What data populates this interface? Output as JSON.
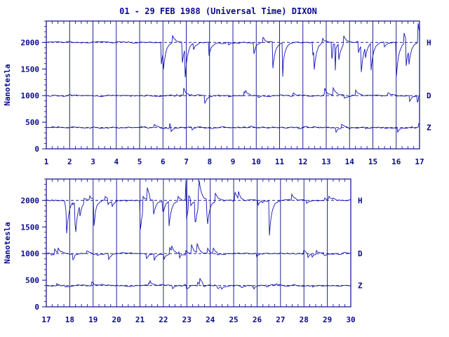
{
  "chart_data": {
    "type": "line",
    "title": "01 - 29 FEB 1988 (Universal Time) DIXON",
    "ylabel": "Nanotesla",
    "colors": {
      "ink": "#0a0a8c",
      "trace": "#1414b4",
      "frame": "#0a0a8c",
      "background": "#ffffff"
    },
    "panels": [
      {
        "id": "top",
        "xlim": [
          1,
          17
        ],
        "xticks": [
          "1",
          "2",
          "3",
          "4",
          "5",
          "6",
          "7",
          "8",
          "9",
          "10",
          "11",
          "12",
          "13",
          "14",
          "15",
          "16",
          "17"
        ],
        "ylim": [
          0,
          2400
        ],
        "yticks": [
          "0",
          "500",
          "1000",
          "1500",
          "2000"
        ],
        "series": [
          {
            "name": "H",
            "baseline": 2000
          },
          {
            "name": "D",
            "baseline": 1000
          },
          {
            "name": "Z",
            "baseline": 400
          }
        ]
      },
      {
        "id": "bottom",
        "xlim": [
          17,
          30
        ],
        "xticks": [
          "17",
          "18",
          "19",
          "20",
          "21",
          "22",
          "23",
          "24",
          "25",
          "26",
          "27",
          "28",
          "29",
          "30"
        ],
        "ylim": [
          0,
          2400
        ],
        "yticks": [
          "0",
          "500",
          "1000",
          "1500",
          "2000"
        ],
        "series": [
          {
            "name": "H",
            "baseline": 2000
          },
          {
            "name": "D",
            "baseline": 1000
          },
          {
            "name": "Z",
            "baseline": 400
          }
        ]
      }
    ]
  }
}
